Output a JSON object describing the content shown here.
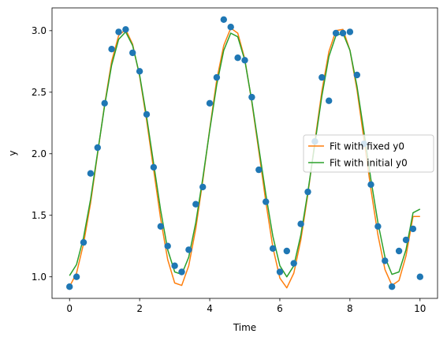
{
  "chart_data": {
    "type": "scatter",
    "title": "",
    "xlabel": "Time",
    "ylabel": "y",
    "xlim": [
      -0.5,
      10.5
    ],
    "ylim": [
      0.825,
      3.185
    ],
    "xticks": [
      0,
      2,
      4,
      6,
      8,
      10
    ],
    "yticks": [
      1.0,
      1.5,
      2.0,
      2.5,
      3.0
    ],
    "grid": false,
    "legend_position": "center-right",
    "scatter": {
      "color": "#1f77b4",
      "x": [
        0.0,
        0.2,
        0.4,
        0.6,
        0.8,
        1.0,
        1.2,
        1.4,
        1.6,
        1.8,
        2.0,
        2.2,
        2.4,
        2.6,
        2.8,
        3.0,
        3.2,
        3.4,
        3.6,
        3.8,
        4.0,
        4.2,
        4.4,
        4.6,
        4.8,
        5.0,
        5.2,
        5.4,
        5.6,
        5.8,
        6.0,
        6.2,
        6.4,
        6.6,
        6.8,
        7.0,
        7.2,
        7.4,
        7.6,
        7.8,
        8.0,
        8.2,
        8.4,
        8.6,
        8.8,
        9.0,
        9.2,
        9.4,
        9.6,
        9.8,
        10.0
      ],
      "y": [
        0.92,
        1.0,
        1.28,
        1.84,
        2.05,
        2.41,
        2.85,
        2.99,
        3.01,
        2.82,
        2.67,
        2.32,
        1.89,
        1.41,
        1.25,
        1.09,
        1.04,
        1.22,
        1.59,
        1.73,
        2.41,
        2.62,
        3.09,
        3.03,
        2.78,
        2.76,
        2.46,
        1.87,
        1.61,
        1.23,
        1.04,
        1.21,
        1.11,
        1.43,
        1.69,
        2.1,
        2.62,
        2.43,
        2.98,
        2.98,
        2.99,
        2.64,
        2.08,
        1.75,
        1.41,
        1.13,
        0.92,
        1.21,
        1.3,
        1.39,
        1.0
      ]
    },
    "series": [
      {
        "name": "Fit with fixed y0",
        "color": "#ff7f0e",
        "x": [
          0.0,
          0.2,
          0.4,
          0.6,
          0.8,
          1.0,
          1.2,
          1.4,
          1.6,
          1.8,
          2.0,
          2.2,
          2.4,
          2.6,
          2.8,
          3.0,
          3.2,
          3.4,
          3.6,
          3.8,
          4.0,
          4.2,
          4.4,
          4.6,
          4.8,
          5.0,
          5.2,
          5.4,
          5.6,
          5.8,
          6.0,
          6.2,
          6.4,
          6.6,
          6.8,
          7.0,
          7.2,
          7.4,
          7.6,
          7.8,
          8.0,
          8.2,
          8.4,
          8.6,
          8.8,
          9.0,
          9.2,
          9.4,
          9.6,
          9.8,
          10.0
        ],
        "y": [
          0.92,
          1.03,
          1.27,
          1.6,
          2.0,
          2.4,
          2.75,
          2.96,
          3.01,
          2.89,
          2.63,
          2.27,
          1.87,
          1.47,
          1.14,
          0.95,
          0.93,
          1.09,
          1.39,
          1.78,
          2.2,
          2.6,
          2.88,
          3.02,
          2.98,
          2.77,
          2.42,
          2.02,
          1.61,
          1.24,
          0.99,
          0.91,
          1.03,
          1.3,
          1.67,
          2.1,
          2.51,
          2.83,
          3.0,
          3.01,
          2.84,
          2.52,
          2.12,
          1.71,
          1.34,
          1.06,
          0.93,
          0.97,
          1.17,
          1.49,
          1.49
        ]
      },
      {
        "name": "Fit with initial y0",
        "color": "#2ca02c",
        "x": [
          0.0,
          0.2,
          0.4,
          0.6,
          0.8,
          1.0,
          1.2,
          1.4,
          1.6,
          1.8,
          2.0,
          2.2,
          2.4,
          2.6,
          2.8,
          3.0,
          3.2,
          3.4,
          3.6,
          3.8,
          4.0,
          4.2,
          4.4,
          4.6,
          4.8,
          5.0,
          5.2,
          5.4,
          5.6,
          5.8,
          6.0,
          6.2,
          6.4,
          6.6,
          6.8,
          7.0,
          7.2,
          7.4,
          7.6,
          7.8,
          8.0,
          8.2,
          8.4,
          8.6,
          8.8,
          9.0,
          9.2,
          9.4,
          9.6,
          9.8,
          10.0
        ],
        "y": [
          1.01,
          1.1,
          1.32,
          1.63,
          2.01,
          2.39,
          2.72,
          2.93,
          2.99,
          2.88,
          2.64,
          2.3,
          1.92,
          1.54,
          1.22,
          1.04,
          1.02,
          1.16,
          1.44,
          1.8,
          2.19,
          2.56,
          2.84,
          2.98,
          2.95,
          2.76,
          2.43,
          2.05,
          1.67,
          1.33,
          1.09,
          1.0,
          1.09,
          1.34,
          1.69,
          2.08,
          2.47,
          2.79,
          2.96,
          2.98,
          2.84,
          2.55,
          2.18,
          1.79,
          1.44,
          1.16,
          1.02,
          1.04,
          1.22,
          1.52,
          1.55
        ]
      }
    ]
  }
}
